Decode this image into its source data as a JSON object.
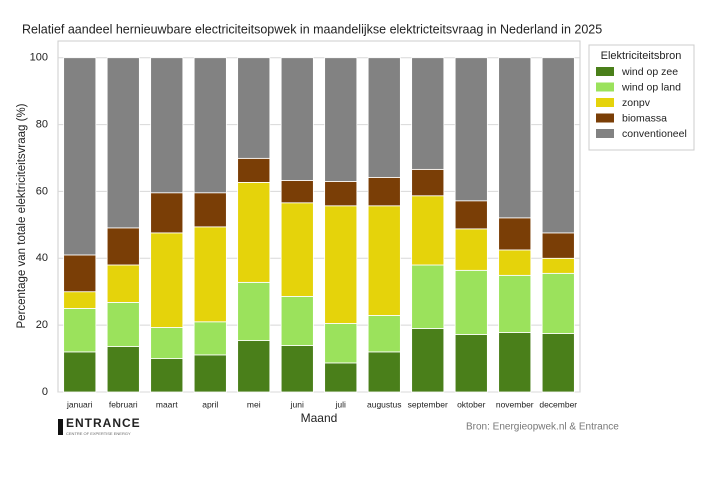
{
  "chart_data": {
    "type": "stacked_bar",
    "title": "Relatief aandeel hernieuwbare electriciteitsopwek in maandelijkse elektricteitsvraag in Nederland in 2025",
    "x_label": "Maand",
    "y_label": "Percentage van totale elektriciteitsvraag (%)",
    "legend_title": "Elektriciteitsbron",
    "legend_position": "outside-right",
    "source": "Bron: Energieopwek.nl & Entrance",
    "logo_text": "ENTRANCE",
    "logo_subtitle": "CENTRE OF EXPERTISE ENERGY",
    "categories": [
      "januari",
      "februari",
      "maart",
      "april",
      "mei",
      "juni",
      "juli",
      "augustus",
      "september",
      "oktober",
      "november",
      "december"
    ],
    "series": [
      {
        "name": "wind op zee",
        "color": "#4a7f1a",
        "values": [
          12,
          13.6,
          10,
          11.1,
          15.4,
          13.9,
          8.7,
          12,
          19,
          17.2,
          17.8,
          17.5
        ]
      },
      {
        "name": "wind op land",
        "color": "#9be25c",
        "values": [
          13,
          13.2,
          9.3,
          9.9,
          17.4,
          14.7,
          11.8,
          10.9,
          19,
          19.2,
          17.1,
          18
        ]
      },
      {
        "name": "zonpv",
        "color": "#e5d30b",
        "values": [
          5,
          11.2,
          28.3,
          28.4,
          29.9,
          28,
          35.2,
          32.8,
          20.7,
          12.4,
          7.6,
          4.5
        ]
      },
      {
        "name": "biomassa",
        "color": "#7a3e06",
        "values": [
          11,
          11.1,
          12,
          10.2,
          7.2,
          6.7,
          7.3,
          8.5,
          7.9,
          8.4,
          9.6,
          7.6
        ]
      },
      {
        "name": "conventioneel",
        "color": "#828282",
        "values": [
          59,
          50.9,
          40.4,
          40.4,
          30.1,
          36.7,
          37,
          35.8,
          33.4,
          42.8,
          47.9,
          52.4
        ]
      }
    ],
    "ylim": [
      0,
      105
    ],
    "yticks": [
      0,
      20,
      40,
      60,
      80,
      100
    ],
    "grid": true
  }
}
